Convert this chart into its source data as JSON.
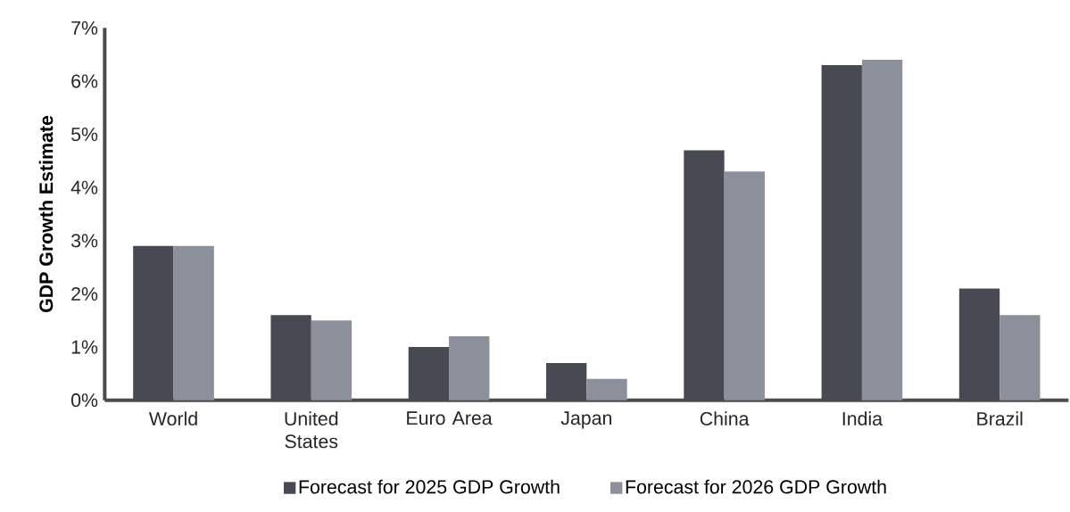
{
  "chart_data": {
    "type": "bar",
    "ylabel": "GDP Growth Estimate",
    "categories": [
      "World",
      "United States",
      "Euro Area",
      "Japan",
      "China",
      "India",
      "Brazil"
    ],
    "series": [
      {
        "name": "Forecast for 2025 GDP Growth",
        "color": "#474a53",
        "values": [
          2.9,
          1.6,
          1.0,
          0.7,
          4.7,
          6.3,
          2.1
        ]
      },
      {
        "name": "Forecast for 2026 GDP Growth",
        "color": "#8c909b",
        "values": [
          2.9,
          1.5,
          1.2,
          0.4,
          4.3,
          6.4,
          1.6
        ]
      }
    ],
    "ylim": [
      0,
      7
    ],
    "yticks": [
      {
        "value": 0,
        "label": "0%"
      },
      {
        "value": 1,
        "label": "1%"
      },
      {
        "value": 2,
        "label": "2%"
      },
      {
        "value": 3,
        "label": "3%"
      },
      {
        "value": 4,
        "label": "4%"
      },
      {
        "value": 5,
        "label": "5%"
      },
      {
        "value": 6,
        "label": "6%"
      },
      {
        "value": 7,
        "label": "7%"
      }
    ],
    "grid": false,
    "legend": "bottom"
  }
}
